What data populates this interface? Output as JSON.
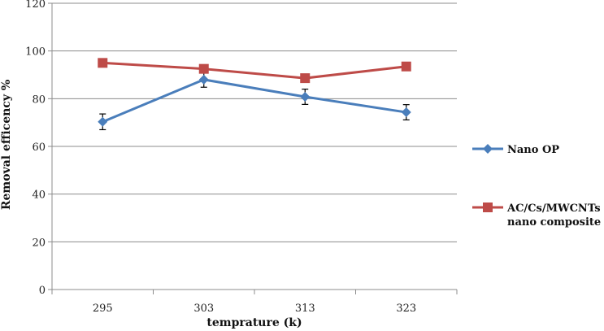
{
  "chart_data": {
    "type": "line",
    "categories": [
      "295",
      "303",
      "313",
      "323"
    ],
    "xlabel": "temprature (k)",
    "ylabel": "Removal efficency %",
    "ylim": [
      0,
      120
    ],
    "yticks": [
      0,
      20,
      40,
      60,
      80,
      100,
      120
    ],
    "grid": "horizontal",
    "legend_position": "right",
    "series": [
      {
        "name": "Nano OP",
        "values": [
          70.3,
          88.0,
          80.8,
          74.3
        ],
        "errors": [
          3.3,
          3.2,
          3.2,
          3.2
        ],
        "color": "#4a7ebb",
        "marker": "diamond"
      },
      {
        "name_lines": [
          "AC/Cs/MWCNTs",
          "nano composite"
        ],
        "values": [
          95.0,
          92.5,
          88.6,
          93.5
        ],
        "color": "#be4b48",
        "marker": "square"
      }
    ]
  }
}
